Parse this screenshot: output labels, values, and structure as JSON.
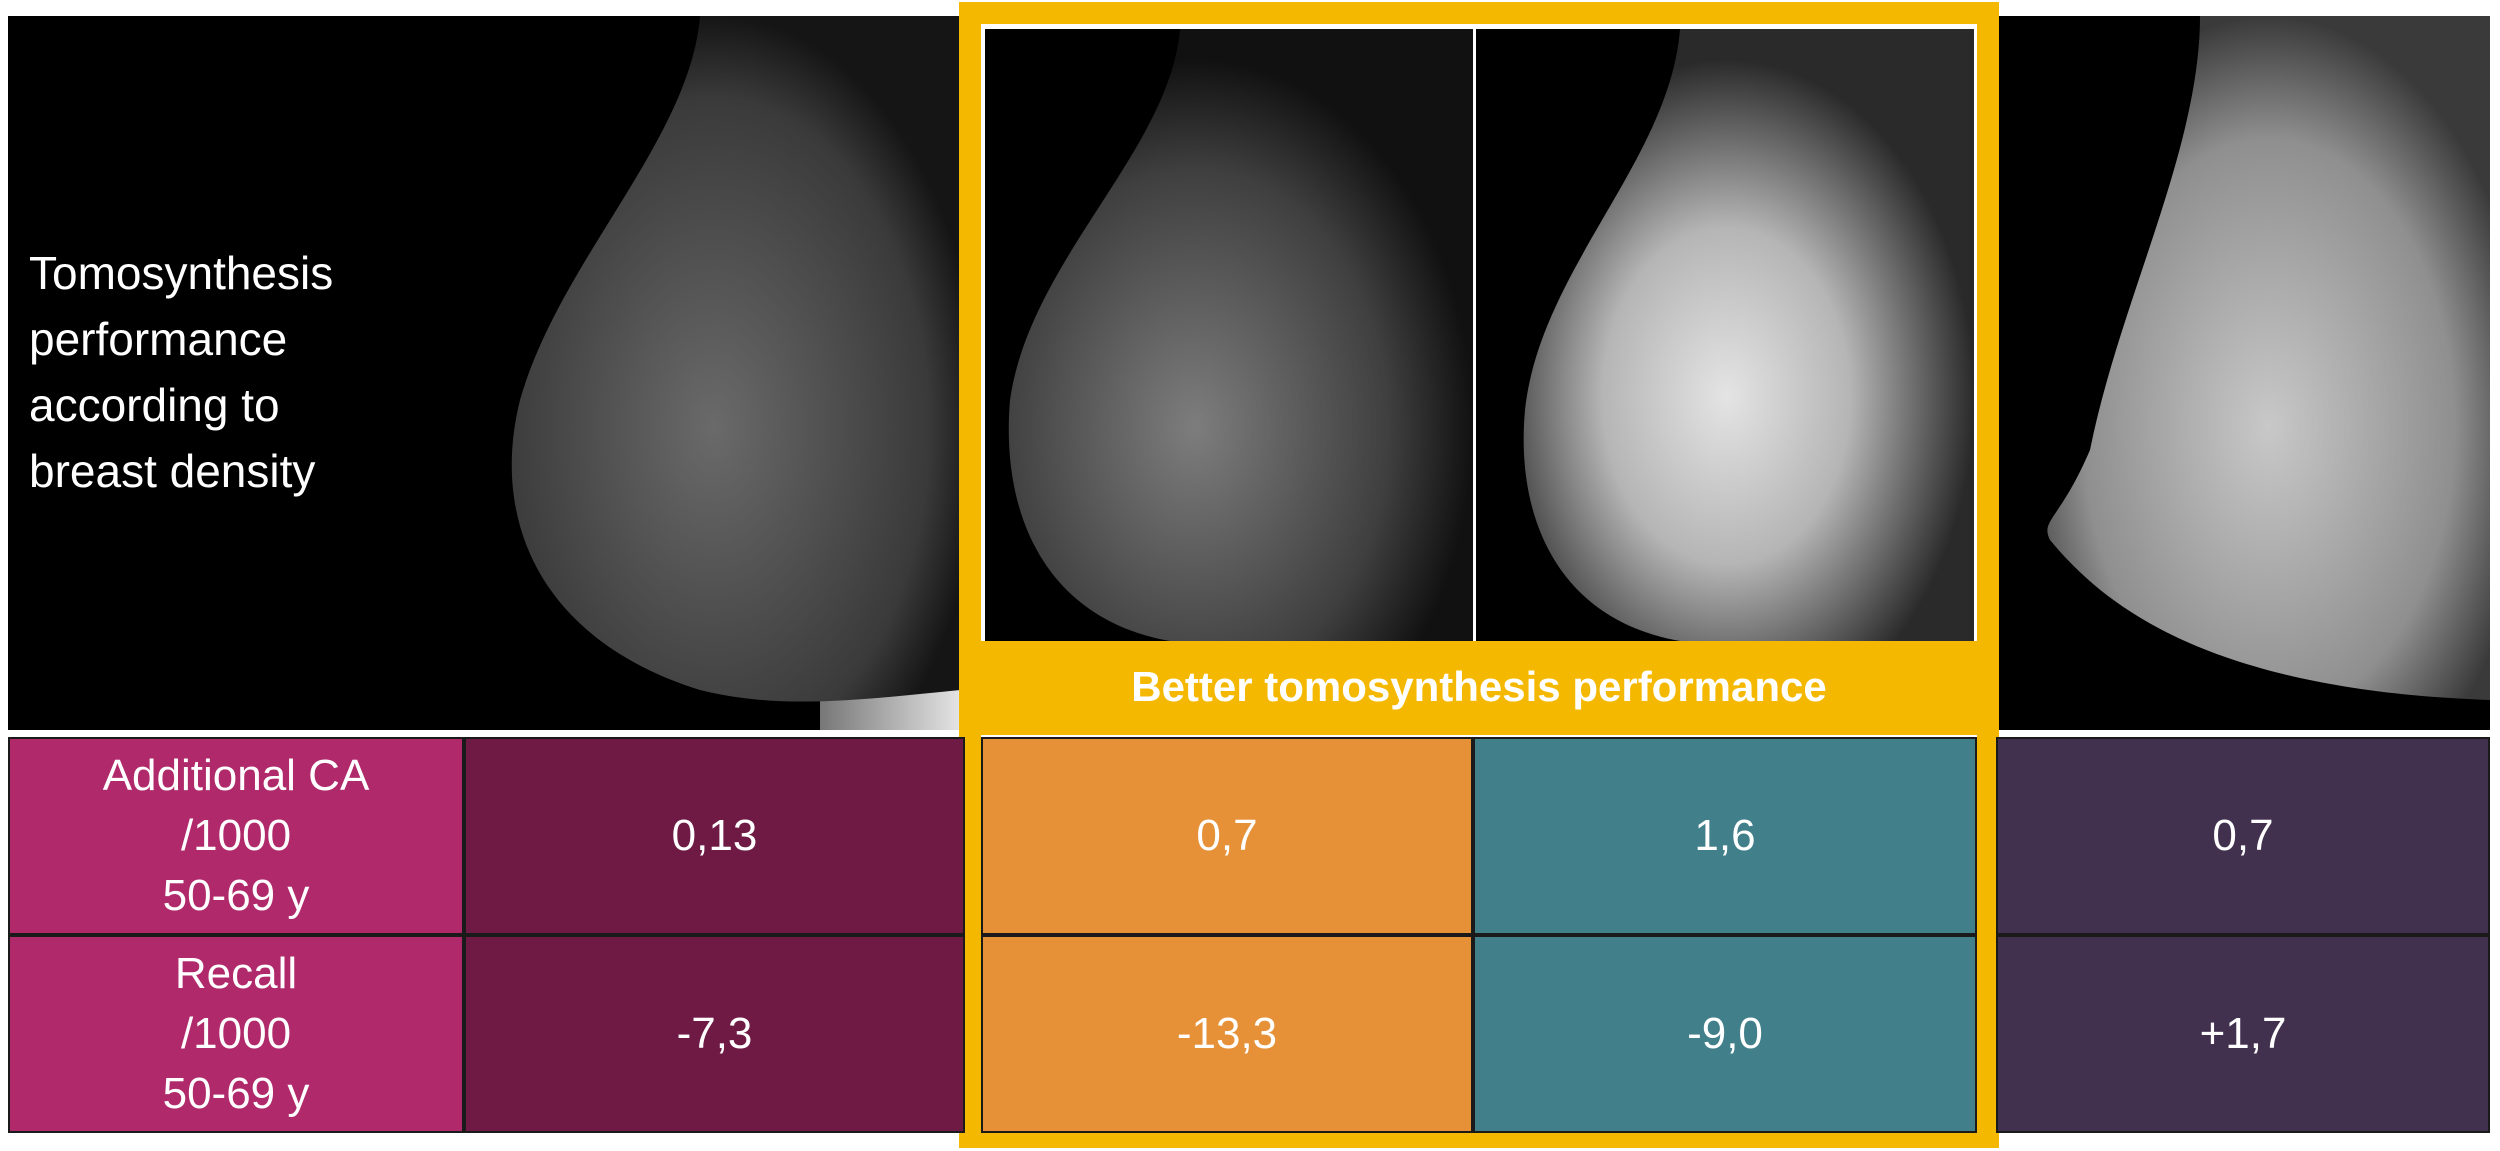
{
  "title": [
    "Tomosynthesis",
    "performance",
    "according to",
    "breast density"
  ],
  "banner": "Better tomosynthesis performance",
  "table": {
    "rows": [
      {
        "label": [
          "Additional CA",
          "/1000",
          "50-69 y"
        ],
        "values": [
          "0,13",
          "0,7",
          "1,6",
          "0,7"
        ]
      },
      {
        "label": [
          "Recall",
          "/1000",
          "50-69 y"
        ],
        "values": [
          "-7,3",
          "-13,3",
          "-9,0",
          "+1,7"
        ]
      }
    ]
  }
}
